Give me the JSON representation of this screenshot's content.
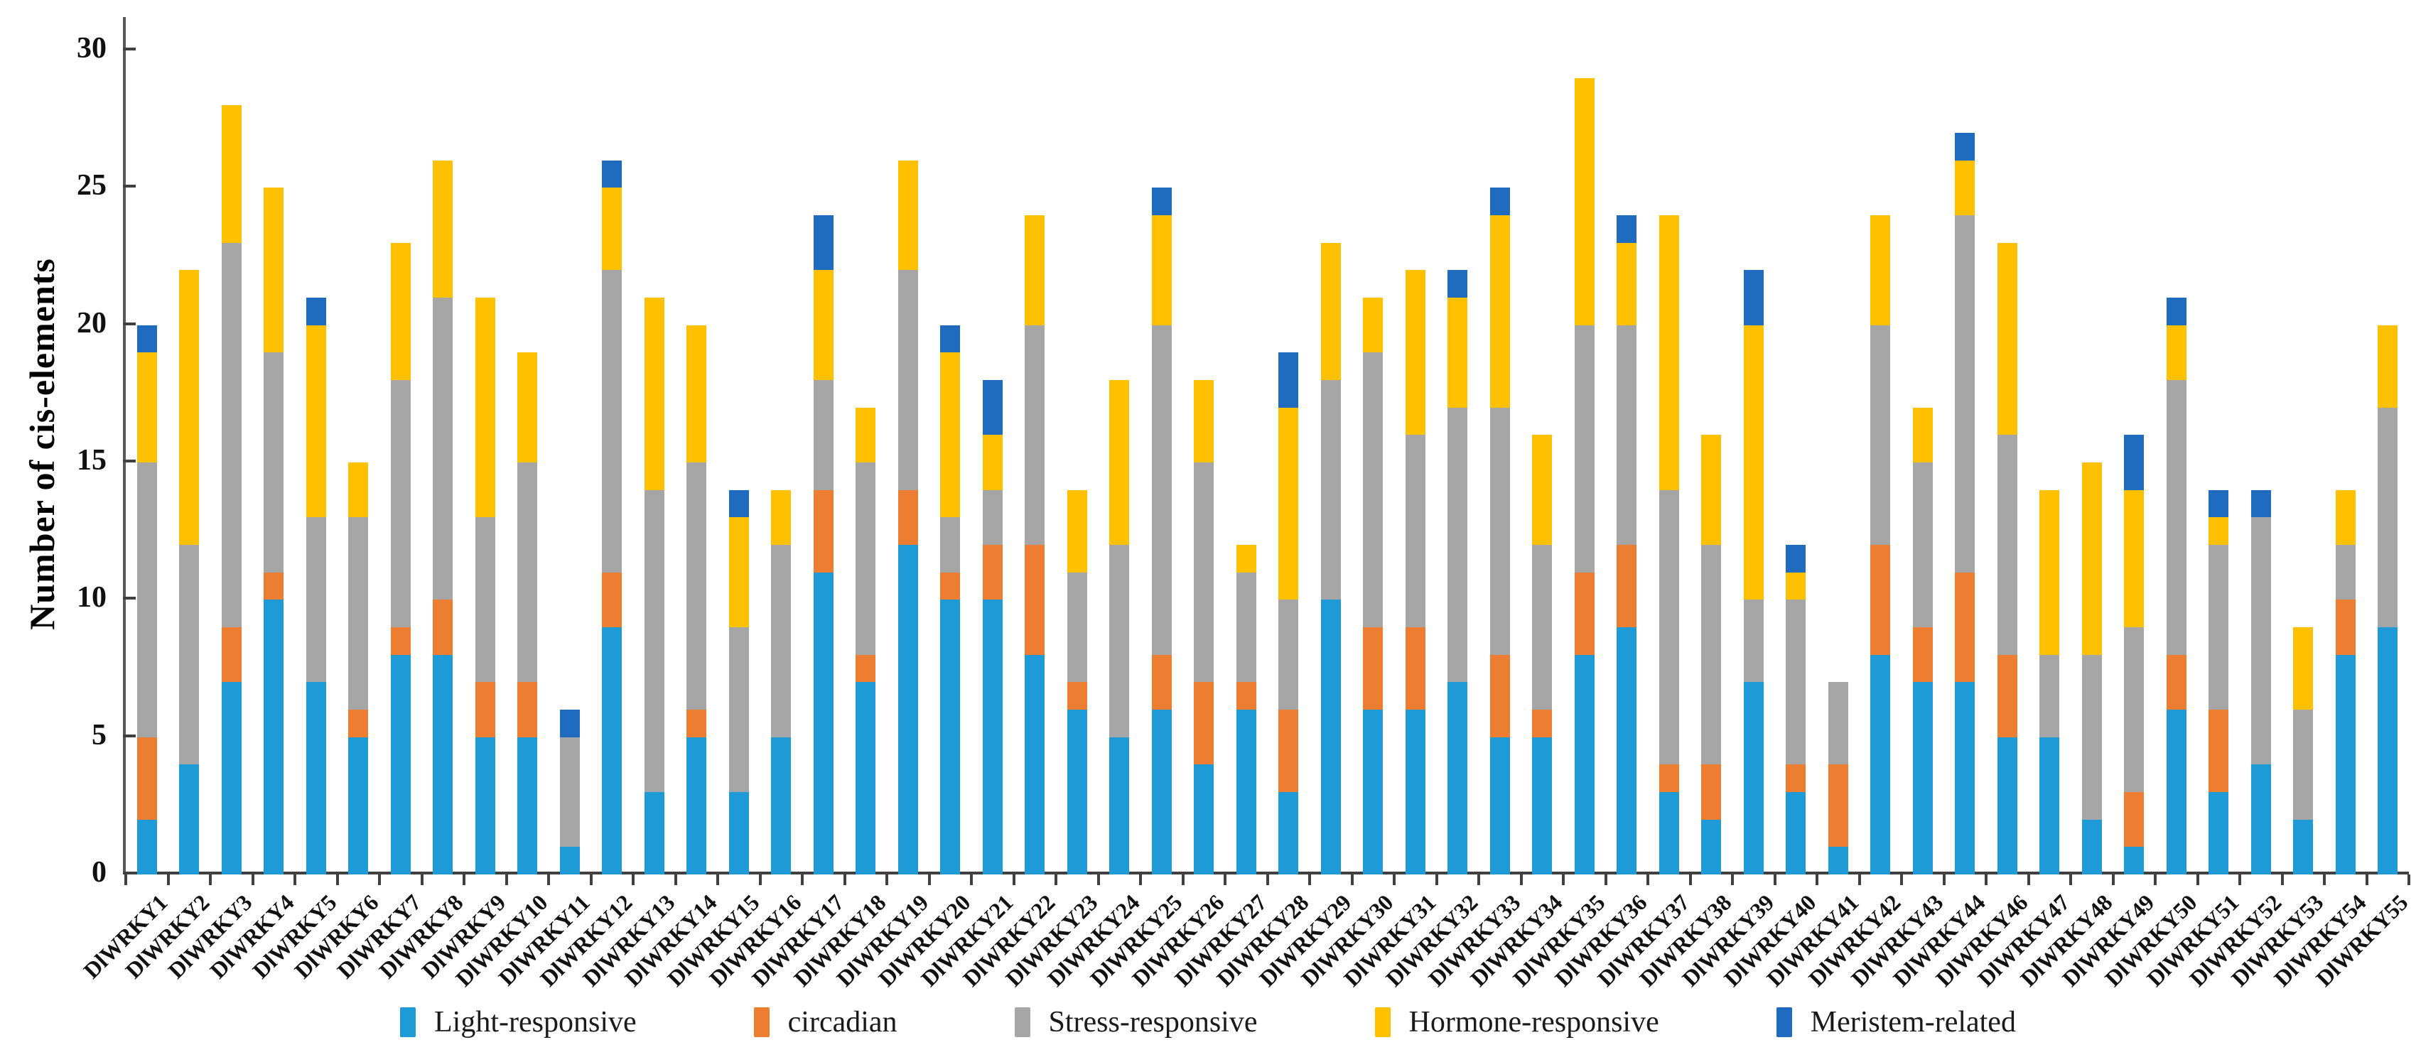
{
  "figure": {
    "y_axis_title": "Number of cis-elements"
  },
  "chart_data": {
    "type": "bar",
    "stacked": true,
    "title": "",
    "xlabel": "",
    "ylabel": "Number of cis-elements",
    "ylim": [
      0,
      30
    ],
    "yticks": [
      0,
      5,
      10,
      15,
      20,
      25,
      30
    ],
    "grid": false,
    "legend_position": "bottom",
    "categories": [
      "DlWRKY1",
      "DlWRKY2",
      "DlWRKY3",
      "DlWRKY4",
      "DlWRKY5",
      "DlWRKY6",
      "DlWRKY7",
      "DlWRKY8",
      "DlWRKY9",
      "DlWRKY10",
      "DlWRKY11",
      "DlWRKY12",
      "DlWRKY13",
      "DlWRKY14",
      "DlWRKY15",
      "DlWRKY16",
      "DlWRKY17",
      "DlWRKY18",
      "DlWRKY19",
      "DlWRKY20",
      "DlWRKY21",
      "DlWRKY22",
      "DlWRKY23",
      "DlWRKY24",
      "DlWRKY25",
      "DlWRKY26",
      "DlWRKY27",
      "DlWRKY28",
      "DlWRKY29",
      "DlWRKY30",
      "DlWRKY31",
      "DlWRKY32",
      "DlWRKY33",
      "DlWRKY34",
      "DlWRKY35",
      "DlWRKY36",
      "DlWRKY37",
      "DlWRKY38",
      "DlWRKY39",
      "DlWRKY40",
      "DlWRKY41",
      "DlWRKY42",
      "DlWRKY43",
      "DlWRKY44",
      "DlWRKY46",
      "DlWRKY47",
      "DlWRKY48",
      "DlWRKY49",
      "DlWRKY50",
      "DlWRKY51",
      "DlWRKY52",
      "DlWRKY53",
      "DlWRKY54",
      "DlWRKY55"
    ],
    "series": [
      {
        "name": "Light-responsive",
        "color": "#1E9AD7",
        "values": [
          2,
          4,
          7,
          10,
          7,
          5,
          8,
          8,
          5,
          5,
          1,
          9,
          3,
          5,
          3,
          5,
          11,
          7,
          12,
          10,
          10,
          8,
          6,
          5,
          6,
          4,
          6,
          3,
          10,
          6,
          6,
          7,
          5,
          5,
          8,
          9,
          3,
          2,
          7,
          3,
          1,
          8,
          7,
          7,
          5,
          5,
          2,
          1,
          6,
          3,
          4,
          2,
          8,
          9
        ]
      },
      {
        "name": "circadian",
        "color": "#ED7D31",
        "values": [
          3,
          0,
          2,
          1,
          0,
          1,
          1,
          2,
          2,
          2,
          0,
          2,
          0,
          1,
          0,
          0,
          3,
          1,
          2,
          1,
          2,
          4,
          1,
          0,
          2,
          3,
          1,
          3,
          0,
          3,
          3,
          0,
          3,
          1,
          3,
          3,
          1,
          2,
          0,
          1,
          3,
          4,
          2,
          4,
          3,
          0,
          0,
          2,
          2,
          3,
          0,
          0,
          2,
          0
        ]
      },
      {
        "name": "Stress-responsive",
        "color": "#A6A6A6",
        "values": [
          10,
          8,
          14,
          8,
          6,
          7,
          9,
          11,
          6,
          8,
          4,
          11,
          11,
          9,
          6,
          7,
          4,
          7,
          8,
          2,
          2,
          8,
          4,
          7,
          12,
          8,
          4,
          4,
          8,
          10,
          7,
          10,
          9,
          6,
          9,
          8,
          10,
          8,
          3,
          6,
          3,
          8,
          6,
          13,
          8,
          3,
          6,
          6,
          10,
          6,
          9,
          4,
          2,
          8
        ]
      },
      {
        "name": "Hormone-responsive",
        "color": "#FFC000",
        "values": [
          4,
          10,
          5,
          6,
          7,
          2,
          5,
          5,
          8,
          4,
          0,
          3,
          7,
          5,
          4,
          2,
          4,
          2,
          4,
          6,
          2,
          4,
          3,
          6,
          4,
          3,
          1,
          7,
          5,
          2,
          6,
          4,
          7,
          4,
          9,
          3,
          10,
          4,
          10,
          1,
          0,
          4,
          2,
          2,
          7,
          6,
          7,
          5,
          2,
          1,
          0,
          3,
          2,
          3
        ]
      },
      {
        "name": "Meristem-related",
        "color": "#1F6BC0",
        "values": [
          1,
          0,
          0,
          0,
          1,
          0,
          0,
          0,
          0,
          0,
          1,
          1,
          0,
          0,
          1,
          0,
          2,
          0,
          0,
          1,
          2,
          0,
          0,
          0,
          1,
          0,
          0,
          2,
          0,
          0,
          0,
          1,
          1,
          0,
          0,
          1,
          0,
          0,
          2,
          1,
          0,
          0,
          0,
          1,
          0,
          0,
          0,
          2,
          1,
          1,
          1,
          0,
          0,
          0
        ]
      }
    ]
  }
}
